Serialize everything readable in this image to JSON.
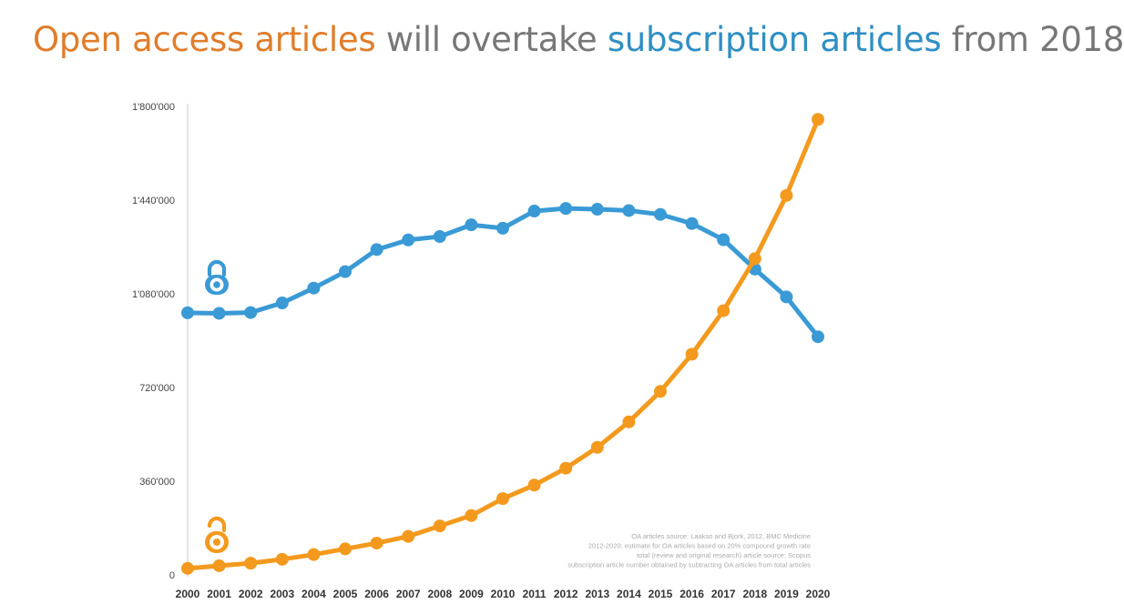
{
  "colors": {
    "open_access": "#f39a1e",
    "subscription": "#3a9ad5",
    "title_oa": "#e07d2b",
    "title_sub": "#2f8fc3",
    "title_neutral": "#777777"
  },
  "title": {
    "part1": "Open access articles",
    "part2": " will overtake ",
    "part3": "subscription articles",
    "part4": " from 2018"
  },
  "chart_data": {
    "type": "line",
    "title": "Open access articles will overtake subscription articles from 2018",
    "xlabel": "",
    "ylabel": "",
    "ylim": [
      0,
      1800000
    ],
    "yticks": [
      0,
      360000,
      720000,
      1080000,
      1440000,
      1800000
    ],
    "ytick_labels": [
      "0",
      "360'000",
      "720'000",
      "1'080'000",
      "1'440'000",
      "1'800'000"
    ],
    "categories": [
      "2000",
      "2001",
      "2002",
      "2003",
      "2004",
      "2005",
      "2006",
      "2007",
      "2008",
      "2009",
      "2010",
      "2011",
      "2012",
      "2013",
      "2014",
      "2015",
      "2016",
      "2017",
      "2018",
      "2019",
      "2020"
    ],
    "series": [
      {
        "name": "Subscription articles",
        "icon": "closed-access-lock-icon",
        "values": [
          1007000,
          1005000,
          1008000,
          1045000,
          1102000,
          1165000,
          1250000,
          1287000,
          1300000,
          1345000,
          1332000,
          1398000,
          1408000,
          1405000,
          1400000,
          1385000,
          1350000,
          1288000,
          1175000,
          1068000,
          915000
        ]
      },
      {
        "name": "Open access articles",
        "icon": "open-access-lock-icon",
        "values": [
          25000,
          35000,
          45000,
          60000,
          78000,
          100000,
          122000,
          148000,
          188000,
          228000,
          293000,
          345000,
          410000,
          490000,
          588000,
          705000,
          848000,
          1015000,
          1215000,
          1458000,
          1750000
        ]
      }
    ],
    "annotation_lines": [
      "OA articles source: Laakso and Bjork, 2012, BMC Medicine",
      "2012-2020: estimate for OA articles based on 20% compound growth rate",
      "total (review and original research) article source: Scopus",
      "subscription article number obtained by subtracting OA articles from total articles"
    ]
  }
}
